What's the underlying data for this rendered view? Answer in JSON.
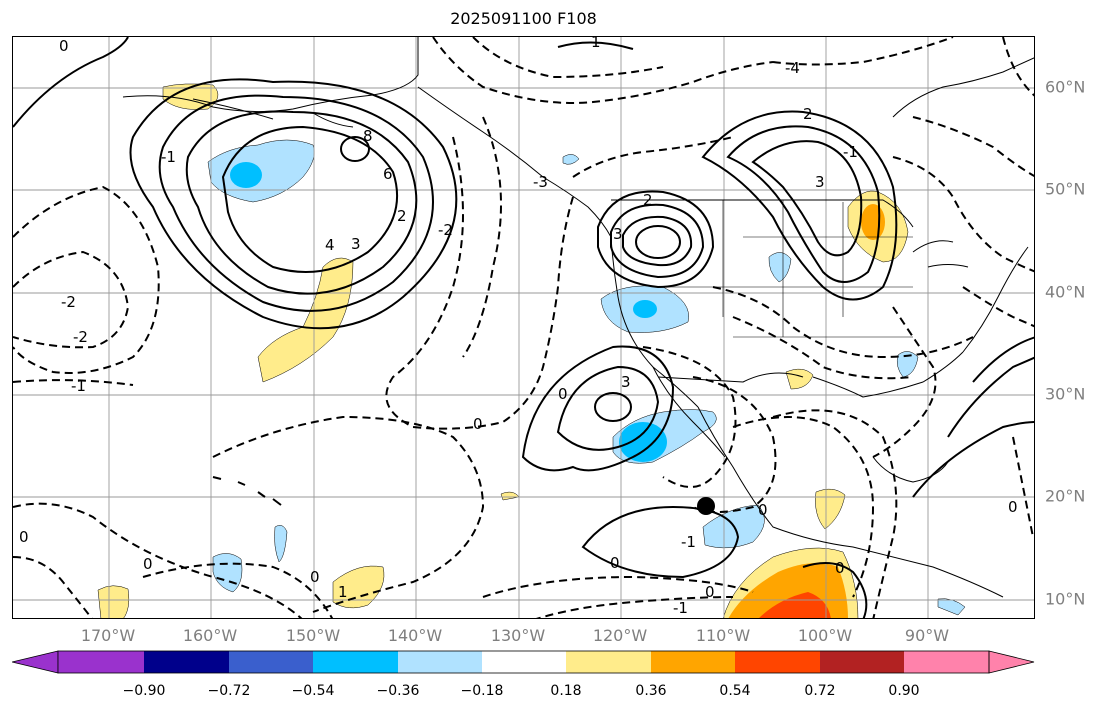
{
  "title": "2025091100 F108",
  "lon_labels": [
    "170°W",
    "160°W",
    "150°W",
    "140°W",
    "130°W",
    "120°W",
    "110°W",
    "100°W",
    "90°W"
  ],
  "lat_labels": [
    "60°N",
    "50°N",
    "40°N",
    "30°N",
    "20°N",
    "10°N"
  ],
  "colorbar": {
    "ticks": [
      "−0.90",
      "−0.72",
      "−0.54",
      "−0.36",
      "−0.18",
      "0.18",
      "0.36",
      "0.54",
      "0.72",
      "0.90"
    ],
    "colors": [
      "#9a32cd",
      "#00008b",
      "#3a5fcd",
      "#00bfff",
      "#b0e2ff",
      "#ffffff",
      "#ffec8b",
      "#ffa500",
      "#ff4500",
      "#b22222",
      "#ff82ab"
    ]
  },
  "contour_labels": {
    "zero": "0",
    "one": "1",
    "two": "2",
    "three": "3",
    "four": "4",
    "six": "6",
    "eight": "8",
    "neg_one": "-1",
    "neg_two": "-2",
    "neg_three": "-3",
    "neg_four": "-4"
  },
  "marker": {
    "name": "storm-center",
    "lon": "111.5°W",
    "lat": "19°N"
  }
}
